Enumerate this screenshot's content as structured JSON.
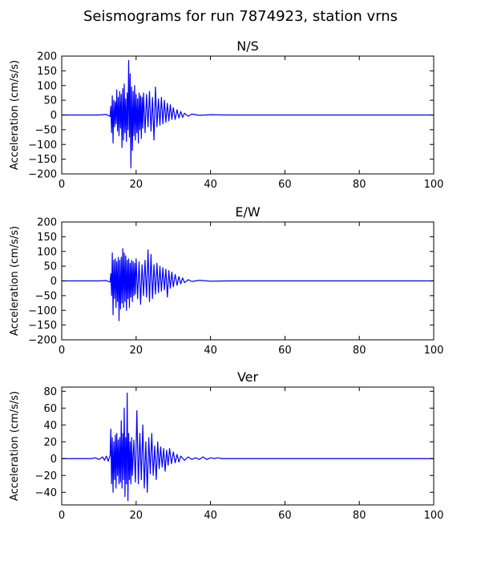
{
  "title": "Seismograms for run 7874923, station vrns",
  "chart_data": [
    {
      "type": "line",
      "title": "N/S",
      "xlabel": "",
      "ylabel": "Acceleration (cm/s/s)",
      "xlim": [
        0,
        100
      ],
      "ylim": [
        -200,
        200
      ],
      "xticks": [
        0,
        20,
        40,
        60,
        80,
        100
      ],
      "yticks": [
        -200,
        -150,
        -100,
        -50,
        0,
        50,
        100,
        150,
        200
      ],
      "color": "#0000ff",
      "grid": false,
      "series": [
        {
          "x": [
            0,
            10,
            12,
            13,
            13.2,
            13.4,
            13.6,
            13.8,
            14.0,
            14.2,
            14.4,
            14.6,
            14.8,
            15.0,
            15.2,
            15.4,
            15.6,
            15.8,
            16.0,
            16.2,
            16.4,
            16.6,
            16.8,
            17.0,
            17.2,
            17.4,
            17.6,
            17.8,
            18.0,
            18.2,
            18.4,
            18.6,
            18.8,
            19.0,
            19.2,
            19.4,
            19.6,
            19.8,
            20.0,
            20.2,
            20.4,
            20.6,
            20.8,
            21.0,
            21.2,
            21.4,
            21.6,
            21.8,
            22.0,
            22.4,
            22.8,
            23.2,
            23.6,
            24.0,
            24.4,
            24.8,
            25.2,
            25.6,
            26.0,
            26.4,
            26.8,
            27.2,
            27.6,
            28.0,
            28.4,
            28.8,
            29.2,
            29.6,
            30.0,
            30.5,
            31.0,
            31.5,
            32.0,
            32.5,
            33.0,
            34.0,
            35.0,
            37.0,
            40.0,
            45.0,
            100
          ],
          "y": [
            0,
            0,
            2,
            -5,
            30,
            -60,
            65,
            -95,
            50,
            -40,
            45,
            -30,
            85,
            -55,
            60,
            -70,
            80,
            -45,
            70,
            -110,
            90,
            -85,
            105,
            -60,
            55,
            -90,
            75,
            -50,
            185,
            -75,
            140,
            -180,
            95,
            -120,
            80,
            -70,
            100,
            -85,
            70,
            -60,
            55,
            -95,
            75,
            -50,
            65,
            -80,
            60,
            -45,
            75,
            -60,
            70,
            -40,
            80,
            -55,
            60,
            -85,
            95,
            -40,
            55,
            -35,
            60,
            -30,
            50,
            -25,
            40,
            -20,
            35,
            -15,
            25,
            -15,
            18,
            -10,
            12,
            -8,
            6,
            -4,
            3,
            -1,
            1,
            0,
            0
          ]
        }
      ]
    },
    {
      "type": "line",
      "title": "E/W",
      "xlabel": "",
      "ylabel": "Acceleration (cm/s/s)",
      "xlim": [
        0,
        100
      ],
      "ylim": [
        -200,
        200
      ],
      "xticks": [
        0,
        20,
        40,
        60,
        80,
        100
      ],
      "yticks": [
        -200,
        -150,
        -100,
        -50,
        0,
        50,
        100,
        150,
        200
      ],
      "color": "#0000ff",
      "grid": false,
      "series": [
        {
          "x": [
            0,
            10,
            12,
            13,
            13.2,
            13.4,
            13.6,
            13.8,
            14.0,
            14.2,
            14.4,
            14.6,
            14.8,
            15.0,
            15.2,
            15.4,
            15.6,
            15.8,
            16.0,
            16.2,
            16.4,
            16.6,
            16.8,
            17.0,
            17.2,
            17.4,
            17.6,
            17.8,
            18.0,
            18.2,
            18.4,
            18.6,
            18.8,
            19.0,
            19.2,
            19.4,
            19.6,
            19.8,
            20.0,
            20.4,
            20.8,
            21.2,
            21.6,
            22.0,
            22.4,
            22.8,
            23.2,
            23.6,
            24.0,
            24.4,
            24.8,
            25.2,
            25.6,
            26.0,
            26.4,
            26.8,
            27.2,
            27.6,
            28.0,
            28.4,
            28.8,
            29.2,
            29.6,
            30.0,
            30.5,
            31.0,
            31.5,
            32.0,
            32.5,
            33.0,
            34.0,
            35.0,
            37.0,
            40.0,
            45.0,
            100
          ],
          "y": [
            0,
            0,
            1,
            -4,
            25,
            -50,
            95,
            -115,
            70,
            -60,
            75,
            -90,
            65,
            -70,
            80,
            -135,
            70,
            -95,
            80,
            -75,
            110,
            -90,
            95,
            -70,
            85,
            -100,
            70,
            -60,
            75,
            -90,
            60,
            -55,
            70,
            -70,
            65,
            -50,
            60,
            -45,
            75,
            -60,
            65,
            -80,
            55,
            -50,
            70,
            -55,
            105,
            -70,
            90,
            -60,
            55,
            -45,
            60,
            -40,
            50,
            -35,
            45,
            -30,
            40,
            -55,
            35,
            -25,
            30,
            -20,
            22,
            -15,
            15,
            -10,
            10,
            -6,
            4,
            -2,
            2,
            -1,
            0,
            0
          ]
        }
      ]
    },
    {
      "type": "line",
      "title": "Ver",
      "xlabel": "",
      "ylabel": "Acceleration (cm/s/s)",
      "xlim": [
        0,
        100
      ],
      "ylim": [
        -55,
        85
      ],
      "xticks": [
        0,
        20,
        40,
        60,
        80,
        100
      ],
      "yticks": [
        -40,
        -20,
        0,
        20,
        40,
        60,
        80
      ],
      "color": "#0000ff",
      "grid": false,
      "series": [
        {
          "x": [
            0,
            8,
            9,
            10,
            11,
            11.5,
            12,
            12.5,
            13,
            13.2,
            13.4,
            13.6,
            13.8,
            14.0,
            14.2,
            14.4,
            14.6,
            14.8,
            15.0,
            15.2,
            15.4,
            15.6,
            15.8,
            16.0,
            16.2,
            16.4,
            16.6,
            16.8,
            17.0,
            17.2,
            17.4,
            17.6,
            17.8,
            18.0,
            18.2,
            18.4,
            18.6,
            18.8,
            19.0,
            19.4,
            19.8,
            20.2,
            20.6,
            21.0,
            21.4,
            21.8,
            22.2,
            22.6,
            23.0,
            23.4,
            23.8,
            24.2,
            24.6,
            25.0,
            25.4,
            25.8,
            26.2,
            26.6,
            27.0,
            27.4,
            27.8,
            28.2,
            28.6,
            29.0,
            29.5,
            30.0,
            30.5,
            31.0,
            31.5,
            32.0,
            33.0,
            34.0,
            35.0,
            36.0,
            37.0,
            38.0,
            39.0,
            40.0,
            41.0,
            42.0,
            43.0,
            45.0,
            100
          ],
          "y": [
            0,
            0,
            1,
            -1,
            2,
            -2,
            3,
            -3,
            4,
            35,
            -30,
            25,
            -40,
            20,
            -25,
            28,
            -35,
            30,
            -20,
            22,
            -30,
            25,
            -28,
            45,
            -35,
            30,
            -25,
            60,
            -45,
            25,
            -30,
            78,
            -50,
            30,
            -25,
            20,
            -30,
            25,
            -20,
            22,
            -28,
            57,
            -30,
            30,
            -25,
            40,
            -35,
            20,
            -40,
            25,
            -18,
            30,
            -20,
            15,
            -25,
            20,
            -12,
            14,
            -10,
            12,
            -15,
            10,
            -8,
            12,
            -6,
            8,
            -5,
            5,
            -4,
            3,
            -2,
            2,
            -1,
            1,
            -1,
            2,
            -1,
            1,
            0,
            1,
            0,
            0,
            0
          ]
        }
      ]
    }
  ]
}
